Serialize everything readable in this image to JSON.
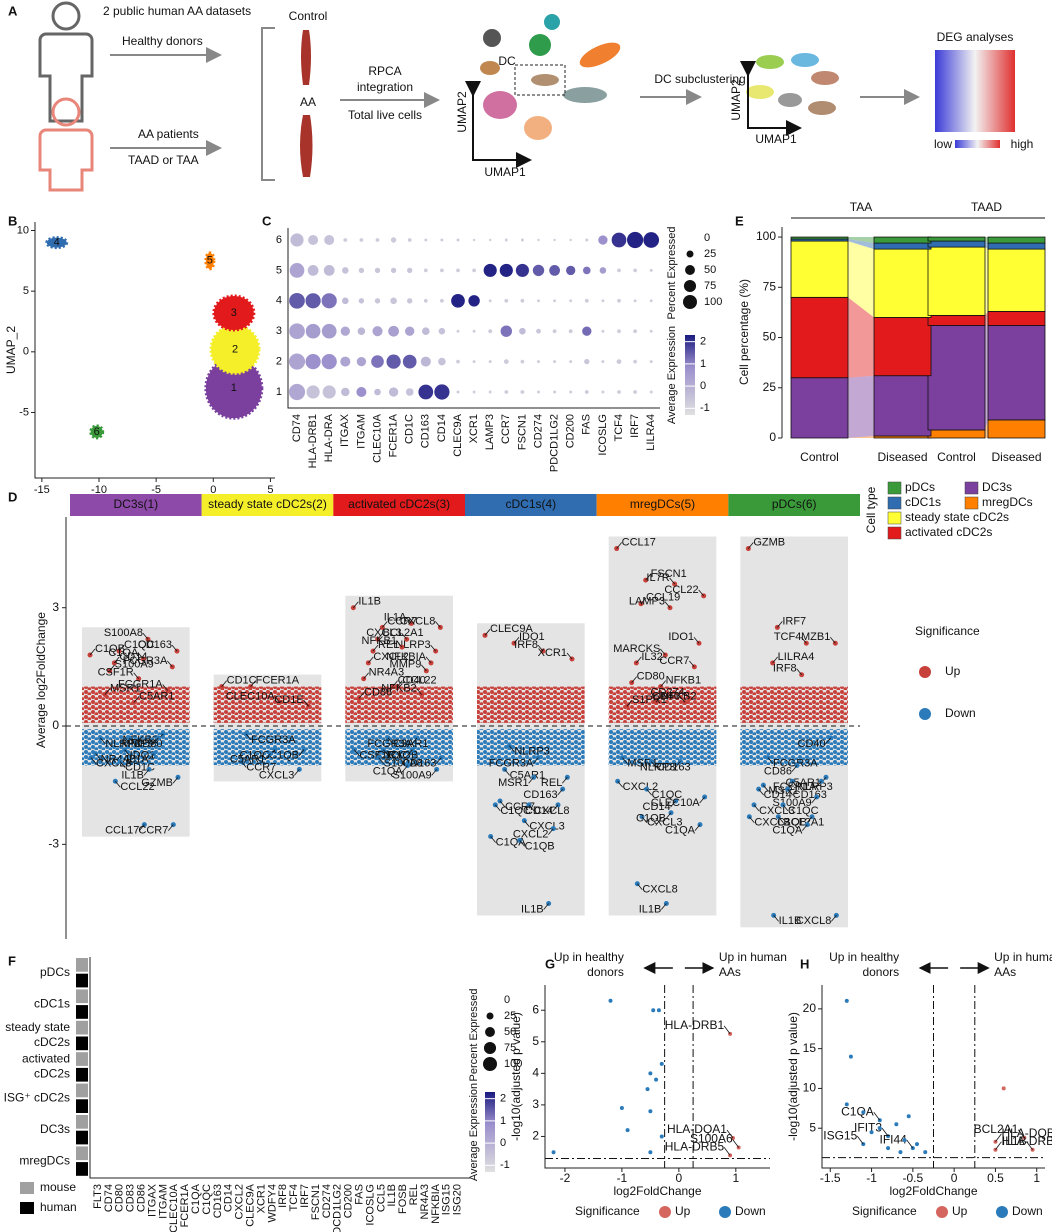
{
  "panel_letters": [
    "A",
    "B",
    "C",
    "D",
    "E",
    "F",
    "G",
    "H"
  ],
  "schematic": {
    "datasets": "2 public human AA datasets",
    "healthy": "Healthy donors",
    "patients": "AA patients",
    "patient_types": "TAAD or TAA",
    "control": "Control",
    "aa": "AA",
    "integration": [
      "RPCA",
      "integration"
    ],
    "cells": "Total live cells",
    "dc": "DC",
    "umap2": "UMAP2",
    "umap1": "UMAP1",
    "subclustering": "DC subclustering",
    "umap2_b": "UMAP2",
    "umap1_b": "UMAP1",
    "deg": "DEG analyses",
    "low": "low",
    "high": "high"
  },
  "chart_data": [
    {
      "type": "cluster-map",
      "xlabel": "UMAP_1",
      "ylabel": "UMAP_2",
      "xlim": [
        -15.6,
        5.4
      ],
      "ylim": [
        -10.4,
        10.7
      ],
      "xticks": [
        -15,
        -10,
        -5,
        0,
        5
      ],
      "yticks": [
        -5,
        0,
        5,
        10
      ],
      "clusters": {
        "labels": [
          "1",
          "2",
          "3",
          "4",
          "5",
          "6"
        ],
        "x": [
          1.8,
          1.9,
          1.8,
          -13.7,
          -0.3,
          -10.2
        ],
        "y": [
          -3.0,
          0.2,
          3.2,
          9.0,
          7.5,
          -6.6
        ],
        "colors": [
          "#7b3f9e",
          "#f5ef2a",
          "#e31a1c",
          "#2f6db0",
          "#ff7f00",
          "#3a9a3a"
        ]
      }
    },
    {
      "type": "dot",
      "rows": [
        "1",
        "2",
        "3",
        "4",
        "5",
        "6"
      ],
      "genes": [
        "CD74",
        "HLA-DRB1",
        "HLA-DRA",
        "ITGAX",
        "ITGAM",
        "CLEC10A",
        "FCER1A",
        "CD1C",
        "CD163",
        "CD14",
        "CLEC9A",
        "XCR1",
        "LAMP3",
        "CCR7",
        "FSCN1",
        "CD274",
        "PDCD1LG2",
        "CD200",
        "FAS",
        "ICOSLG",
        "TCF4",
        "IRF7",
        "LILRA4"
      ],
      "size_title": "Percent Expressed",
      "size_ticks": [
        0,
        25,
        50,
        75,
        100
      ],
      "color_title": "Average Expression",
      "color_ticks": [
        -1,
        0,
        1,
        2
      ],
      "percent_expressed": [
        [
          90,
          60,
          60,
          25,
          35,
          15,
          30,
          20,
          75,
          80,
          3,
          3,
          3,
          5,
          5,
          3,
          3,
          3,
          5,
          3,
          5,
          5,
          3
        ],
        [
          90,
          80,
          80,
          35,
          30,
          55,
          70,
          65,
          35,
          20,
          5,
          3,
          3,
          8,
          5,
          3,
          3,
          3,
          10,
          3,
          8,
          5,
          3
        ],
        [
          85,
          75,
          75,
          30,
          20,
          35,
          40,
          30,
          20,
          15,
          3,
          3,
          5,
          45,
          15,
          8,
          5,
          5,
          30,
          3,
          5,
          5,
          3
        ],
        [
          85,
          80,
          80,
          15,
          10,
          10,
          15,
          10,
          5,
          5,
          65,
          45,
          3,
          5,
          5,
          3,
          3,
          3,
          5,
          3,
          5,
          3,
          3
        ],
        [
          75,
          40,
          40,
          15,
          10,
          10,
          10,
          10,
          5,
          5,
          5,
          5,
          60,
          60,
          60,
          45,
          40,
          30,
          20,
          15,
          5,
          5,
          3
        ],
        [
          60,
          35,
          35,
          5,
          5,
          5,
          10,
          5,
          3,
          3,
          3,
          2,
          2,
          3,
          3,
          2,
          2,
          2,
          3,
          30,
          75,
          90,
          85
        ]
      ],
      "average_expression": [
        [
          0.2,
          -0.5,
          -0.5,
          -0.3,
          0.8,
          -0.3,
          -0.3,
          -0.5,
          2.0,
          2.0,
          -0.8,
          -0.8,
          -0.8,
          -0.8,
          -0.8,
          -0.8,
          -0.8,
          -0.8,
          -0.7,
          -0.8,
          -0.8,
          -0.8,
          -0.8
        ],
        [
          0.3,
          0.8,
          0.8,
          0.3,
          0.3,
          1.2,
          1.5,
          1.5,
          -0.2,
          -0.5,
          -0.8,
          -0.8,
          -0.8,
          -0.7,
          -0.8,
          -0.8,
          -0.8,
          -0.8,
          -0.6,
          -0.8,
          -0.7,
          -0.8,
          -0.8
        ],
        [
          0.3,
          0.5,
          0.5,
          0.2,
          -0.2,
          0.3,
          0.4,
          0.3,
          -0.3,
          -0.5,
          -0.8,
          -0.8,
          -0.7,
          1.2,
          -0.3,
          -0.6,
          -0.7,
          -0.7,
          1.3,
          -0.8,
          -0.8,
          -0.8,
          -0.8
        ],
        [
          1.5,
          1.5,
          1.2,
          -0.3,
          -0.5,
          -0.6,
          -0.6,
          -0.6,
          -0.8,
          -0.8,
          2.2,
          2.2,
          -0.8,
          -0.8,
          -0.8,
          -0.8,
          -0.8,
          -0.8,
          -0.8,
          -0.8,
          -0.8,
          -0.8,
          -0.8
        ],
        [
          0.3,
          -0.3,
          -0.3,
          -0.5,
          -0.6,
          -0.6,
          -0.6,
          -0.6,
          -0.8,
          -0.8,
          -0.8,
          -0.8,
          2.2,
          2.2,
          2.0,
          1.5,
          1.5,
          1.5,
          1.2,
          0.5,
          -0.8,
          -0.8,
          -0.8
        ],
        [
          -0.3,
          -0.5,
          -0.5,
          -0.8,
          -0.8,
          -0.8,
          -0.7,
          -0.8,
          -0.8,
          -0.8,
          -0.8,
          -0.8,
          -0.8,
          -0.8,
          -0.8,
          -0.8,
          -0.8,
          -0.8,
          -0.8,
          0.8,
          2.0,
          2.2,
          2.2
        ]
      ]
    },
    {
      "type": "strip",
      "ylabel": "Average log2FoldChange",
      "ylim": [
        -5.4,
        5.3
      ],
      "yticks": [
        -3,
        0,
        3
      ],
      "significance": {
        "title": "Significance",
        "names": [
          "Up",
          "Down"
        ],
        "colors": [
          "#c8403a",
          "#2b7bba"
        ]
      },
      "clusters": [
        {
          "name": "DC3s(1)",
          "color": "#8e4aa8",
          "labels": [
            "C1QB",
            "C1QC",
            "S100A8",
            "CD163",
            "CD14",
            "C1QA",
            "FCGR3A",
            "S100A9",
            "CSF1R",
            "FCGR1A",
            "MSR1",
            "C5AR1",
            "NFKB2",
            "NLRP3",
            "CD80",
            "MMP9",
            "NR4A3",
            "IDO1",
            "IL1A",
            "CXCL8",
            "CD1C",
            "IL1B",
            "GZMB",
            "CCL22",
            "CCL17",
            "CCR7"
          ],
          "values": [
            1.8,
            1.9,
            2.2,
            1.9,
            1.6,
            1.7,
            1.5,
            1.4,
            1.2,
            0.9,
            0.8,
            0.6,
            -0.2,
            -0.3,
            -0.3,
            -0.3,
            -0.7,
            -0.6,
            -0.7,
            -0.8,
            -0.9,
            -1.1,
            -1.3,
            -1.4,
            -2.5,
            -2.5
          ]
        },
        {
          "name": "steady state cDC2s(2)",
          "color": "#f5ef2a",
          "labels": [
            "CD1C",
            "FCER1A",
            "CLEC10A",
            "CD1E",
            "FCGR3A",
            "C1QC",
            "C1QB",
            "CCR7",
            "C5AR1",
            "CXCL3"
          ],
          "values": [
            1.0,
            1.0,
            0.6,
            0.5,
            -0.2,
            -0.6,
            -0.6,
            -0.9,
            -0.7,
            -1.1
          ]
        },
        {
          "name": "activated cDC2s(3)",
          "color": "#e31a1c",
          "labels": [
            "IL1B",
            "CCR7",
            "IL1A",
            "CXCL8",
            "BCL2A1",
            "CXCL3",
            "NLRP3",
            "REL",
            "NFKB1",
            "NFKBIA",
            "CXCL2",
            "CCL22",
            "MMP9",
            "NR4A3",
            "CD40",
            "NFKB2",
            "CD86",
            "C3AR1",
            "FCGR3A",
            "CSF1R",
            "C1QB",
            "C1QC",
            "CD163",
            "S100A8",
            "C1QA",
            "S100A9"
          ],
          "values": [
            3.0,
            2.5,
            2.6,
            2.5,
            2.2,
            2.2,
            1.9,
            1.9,
            2.0,
            1.6,
            1.6,
            1.0,
            1.4,
            1.2,
            1.0,
            0.8,
            0.7,
            -0.3,
            -0.3,
            -0.6,
            -0.6,
            -0.6,
            -0.8,
            -0.8,
            -1.0,
            -1.1
          ]
        },
        {
          "name": "cDC1s(4)",
          "color": "#2f6db0",
          "labels": [
            "CLEC9A",
            "IDO1",
            "IRF8",
            "XCR1",
            "NLRP3",
            "FCGR3A",
            "REL",
            "C5AR1",
            "MSR1",
            "CD163",
            "CCR7",
            "CXCL8",
            "CD14",
            "C1QC",
            "CXCL3",
            "CXCL2",
            "C1QA",
            "C1QB",
            "IL1B"
          ],
          "values": [
            2.3,
            2.1,
            1.9,
            1.7,
            -0.5,
            -0.8,
            -1.3,
            -1.1,
            -1.3,
            -1.6,
            -1.9,
            -2.0,
            -2.0,
            -2.0,
            -2.4,
            -2.6,
            -2.8,
            -2.9,
            -4.5
          ]
        },
        {
          "name": "mregDCs(5)",
          "color": "#ff7f00",
          "labels": [
            "CCL17",
            "FSCN1",
            "IL7R",
            "CCL22",
            "CCL19",
            "LAMP3",
            "IDO1",
            "IL32",
            "MARCKS",
            "CCR7",
            "CD80",
            "NFKB1",
            "CD274",
            "S1PR1",
            "NFKB2",
            "CD40",
            "MSR1",
            "CD163",
            "NLRP3",
            "CXCL2",
            "C1QC",
            "CD14",
            "CLEC10A",
            "CXCL3",
            "C1QB",
            "C1QA",
            "CXCL8",
            "IL1B"
          ],
          "values": [
            4.5,
            3.7,
            3.6,
            3.3,
            3.1,
            3.0,
            2.1,
            1.6,
            1.8,
            1.5,
            1.1,
            1.0,
            0.7,
            0.5,
            0.6,
            0.6,
            -0.8,
            -0.9,
            -0.9,
            -1.4,
            -1.6,
            -1.9,
            -1.8,
            -2.3,
            -2.2,
            -2.5,
            -4.0,
            -4.5
          ]
        },
        {
          "name": "pDCs(6)",
          "color": "#3a9a3a",
          "labels": [
            "GZMB",
            "IRF7",
            "TCF4",
            "MZB1",
            "LILRA4",
            "IRF8",
            "CD40",
            "FCGR3A",
            "CD86",
            "C5AR1",
            "MSR1",
            "NLRP3",
            "FCER1A",
            "CD14",
            "CD163",
            "S100A9",
            "CXCL3",
            "C1QC",
            "C1QB",
            "CXCL2",
            "BCL2A1",
            "C1QA",
            "CXCL8",
            "IL1B"
          ],
          "values": [
            4.5,
            2.5,
            2.1,
            2.1,
            1.6,
            1.3,
            -0.3,
            -0.8,
            -1.0,
            -1.3,
            -1.5,
            -1.4,
            -1.4,
            -1.6,
            -1.6,
            -1.8,
            -2.0,
            -2.0,
            -2.3,
            -2.3,
            -2.3,
            -2.5,
            -4.8,
            -4.8
          ]
        }
      ]
    },
    {
      "type": "stacked-bar",
      "ylabel": "Cell percentage (%)",
      "ylim": [
        0,
        105
      ],
      "yticks": [
        0,
        25,
        50,
        75,
        100
      ],
      "groups": [
        "TAA",
        "TAAD"
      ],
      "categories": [
        "Control",
        "Diseased",
        "Control",
        "Diseased"
      ],
      "legend_title": "Cell type",
      "series": [
        {
          "name": "mregDCs",
          "color": "#ff7f00",
          "values": [
            0,
            1,
            4,
            9
          ]
        },
        {
          "name": "DC3s",
          "color": "#7b3f9e",
          "values": [
            30,
            30,
            52,
            47
          ]
        },
        {
          "name": "activated cDC2s",
          "color": "#e31a1c",
          "values": [
            40,
            29,
            5,
            7
          ]
        },
        {
          "name": "steady state cDC2s",
          "color": "#ffff33",
          "values": [
            28,
            34,
            34,
            31
          ]
        },
        {
          "name": "cDC1s",
          "color": "#2f6db0",
          "values": [
            1,
            3,
            3,
            3
          ]
        },
        {
          "name": "pDCs",
          "color": "#3a9a3a",
          "values": [
            1,
            3,
            2,
            3
          ]
        }
      ]
    },
    {
      "type": "dot",
      "rows": [
        [
          "pDCs"
        ],
        [
          "cDC1s"
        ],
        [
          "steady state",
          "cDC2s"
        ],
        [
          "activated",
          "cDC2s"
        ],
        [
          "ISG⁺ cDC2s"
        ],
        [
          "DC3s"
        ],
        [
          "mregDCs"
        ]
      ],
      "genes": [
        "FLT3",
        "CD74",
        "CD80",
        "CD83",
        "CD86",
        "ITGAX",
        "ITGAM",
        "CLEC10A",
        "FCER1A",
        "C1QA",
        "C1QC",
        "CD163",
        "CD14",
        "CXCL2",
        "CLEC9A",
        "XCR1",
        "WDFY4",
        "IRF8",
        "TCF4",
        "IRF7",
        "FSCN1",
        "CD274",
        "PDCD1LG2",
        "CD200",
        "FAS",
        "ICOSLG",
        "CCL5",
        "IL1B",
        "FOSB",
        "REL",
        "NR4A3",
        "NFKBIA",
        "ISG15",
        "ISG20"
      ],
      "size_title": "Percent Expressed",
      "size_ticks": [
        0,
        25,
        50,
        75,
        100
      ],
      "color_title": "Average Expression",
      "color_ticks": [
        -1,
        0,
        1,
        2
      ],
      "species": {
        "names": [
          "mouse",
          "human"
        ],
        "colors": [
          "#a0a0a0",
          "#000000"
        ]
      }
    },
    {
      "type": "volcano",
      "xlabel": "log2FoldChange",
      "ylabel": "-log10(adjusted p value)",
      "xlim": [
        -2.35,
        1.6
      ],
      "ylim": [
        1,
        6.8
      ],
      "xticks": [
        -2,
        -1,
        0,
        1
      ],
      "yticks": [
        2,
        3,
        4,
        5,
        6
      ],
      "x_thresholds": [
        -0.25,
        0.25
      ],
      "y_threshold": 1.3,
      "left_note": [
        "Up in healthy",
        "donors"
      ],
      "right_note": [
        "Up in human",
        "AAs"
      ],
      "significance": {
        "title": "Significance",
        "names": [
          "Up",
          "Down"
        ],
        "colors": [
          "#d4665f",
          "#2b7bba"
        ]
      },
      "x": [
        0.9,
        0.95,
        1.05,
        0.9,
        -1.2,
        -0.45,
        -0.35,
        -0.3,
        -0.5,
        -0.55,
        -0.4,
        -1.0,
        -0.5,
        -0.9,
        -0.3,
        -2.2,
        -0.5
      ],
      "y": [
        5.25,
        1.95,
        1.65,
        1.4,
        6.3,
        6.0,
        6.0,
        4.3,
        4.0,
        3.5,
        3.8,
        2.9,
        2.8,
        2.2,
        2.0,
        1.5,
        1.5
      ],
      "labels": [
        "HLA-DRB1",
        "HLA-DQA1",
        "S100A6",
        "HLA-DRB5",
        null,
        null,
        null,
        null,
        null,
        null,
        null,
        null,
        null,
        null,
        null,
        null,
        null
      ]
    },
    {
      "type": "volcano",
      "xlabel": "log2FoldChange",
      "ylabel": "-log10(adjusted p value)",
      "xlim": [
        -1.6,
        1.1
      ],
      "ylim": [
        0,
        23
      ],
      "xticks": [
        -1.5,
        -1,
        -0.5,
        0,
        0.5,
        1
      ],
      "yticks": [
        5,
        10,
        15,
        20
      ],
      "x_thresholds": [
        -0.25,
        0.25
      ],
      "y_threshold": 1.3,
      "left_note": [
        "Up in healthy",
        "donors"
      ],
      "right_note": [
        "Up in human",
        "AAs"
      ],
      "significance": {
        "title": "Significance",
        "names": [
          "Up",
          "Down"
        ],
        "colors": [
          "#d4665f",
          "#2b7bba"
        ]
      },
      "x": [
        0.5,
        0.5,
        0.85,
        0.95,
        0.6,
        -0.9,
        -1.1,
        -0.8,
        -0.5,
        -1.3,
        -1.25,
        -1.3,
        -0.9,
        -0.7,
        -0.6,
        -1.0,
        -0.45,
        -0.8,
        -0.35,
        -0.55,
        -1.1,
        -0.65
      ],
      "y": [
        3.3,
        2.3,
        3.8,
        2.3,
        10,
        6,
        3,
        4,
        2.5,
        21,
        14,
        8,
        5,
        5.5,
        3.5,
        4.5,
        3,
        2.5,
        2,
        6.5,
        7,
        2
      ],
      "labels": [
        "HLA-DQB1",
        "HLA-DRB1",
        "BCL2A1",
        "IL1B",
        null,
        "C1QA",
        "ISG15",
        "IFIT3",
        "IFI44",
        null,
        null,
        null,
        null,
        null,
        null,
        null,
        null,
        null,
        null,
        null,
        null,
        null
      ]
    }
  ]
}
